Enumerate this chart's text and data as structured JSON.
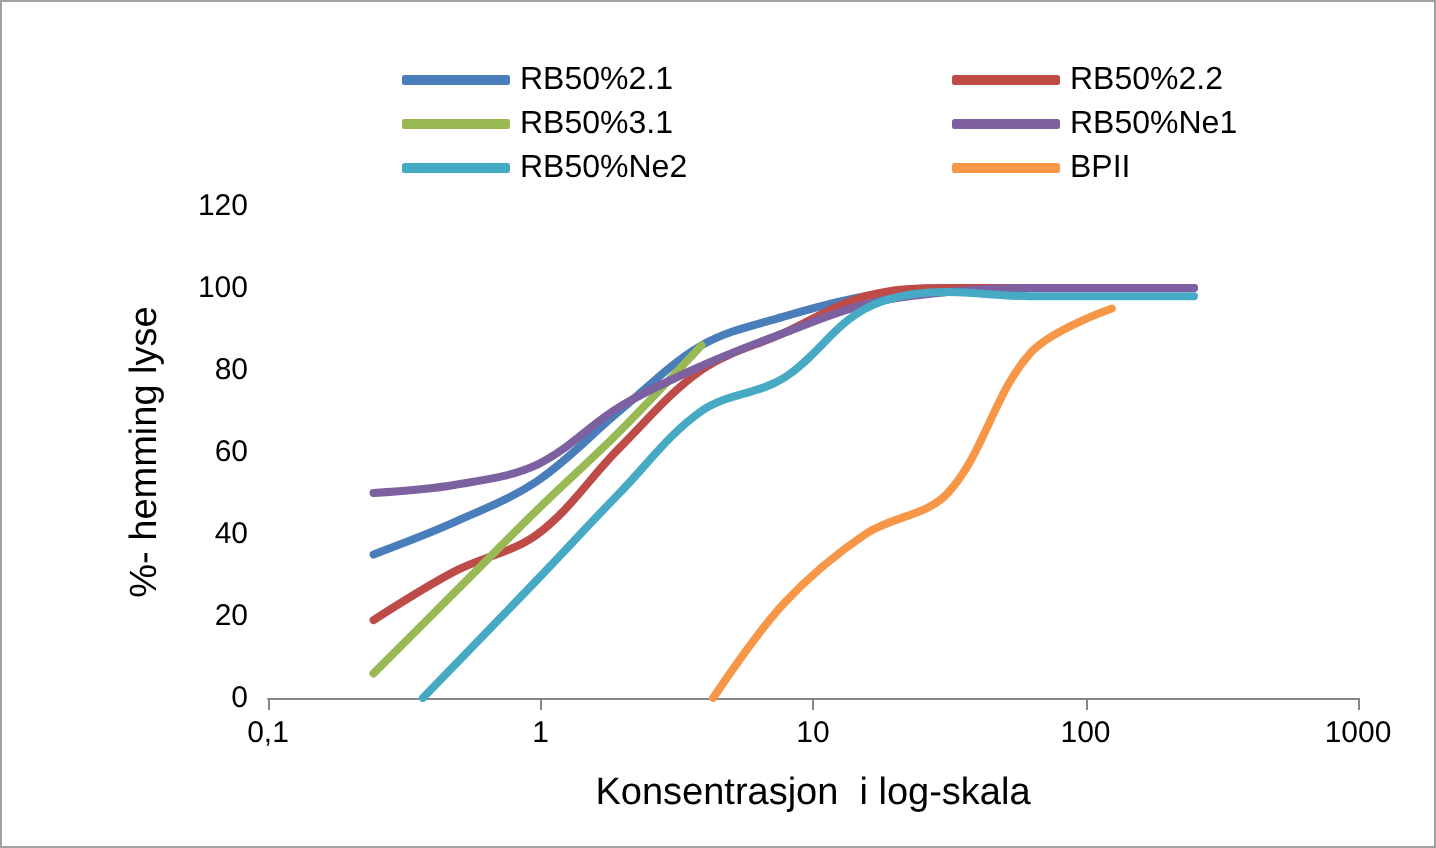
{
  "chart_data": {
    "type": "line",
    "xlabel": "Konsentrasjon  i log-skala",
    "ylabel": "%- hemming lyse",
    "log": "x",
    "xlim": [
      0.1,
      1000
    ],
    "xticks": [
      {
        "value": 0.1,
        "label": "0,1"
      },
      1,
      10,
      100,
      1000
    ],
    "ylim": [
      0,
      120
    ],
    "yticks": [
      0,
      20,
      40,
      60,
      80,
      100,
      120
    ],
    "grid": false,
    "legend": "top",
    "marker": "none",
    "series": [
      {
        "name": "RB50%2.1",
        "color": "#4a7ebb",
        "x": [
          0.244,
          0.488,
          0.977,
          1.95,
          3.9,
          7.8,
          15.6,
          31.25,
          62.5,
          125,
          250
        ],
        "values": [
          35,
          43,
          53,
          70,
          86,
          93,
          98,
          100,
          100,
          100,
          100
        ]
      },
      {
        "name": "RB50%2.2",
        "color": "#be4b48",
        "x": [
          0.244,
          0.488,
          0.977,
          1.95,
          3.9,
          7.8,
          15.6,
          31.25,
          62.5,
          125,
          250
        ],
        "values": [
          19,
          31,
          40,
          61,
          80,
          89,
          98,
          100,
          100,
          100,
          100
        ]
      },
      {
        "name": "RB50%3.1",
        "color": "#98b954",
        "x": [
          0.244,
          0.488,
          0.977,
          1.95,
          3.9
        ],
        "values": [
          6,
          26,
          46,
          65,
          86
        ]
      },
      {
        "name": "RB50%Ne1",
        "color": "#7d60a0",
        "x": [
          0.244,
          0.488,
          0.977,
          1.95,
          3.9,
          7.8,
          15.6,
          31.25,
          62.5,
          125,
          250
        ],
        "values": [
          50,
          52,
          57,
          71,
          81,
          89,
          96,
          99,
          100,
          100,
          100
        ]
      },
      {
        "name": "RB50%Ne2",
        "color": "#46aac5",
        "x": [
          0.37,
          0.977,
          1.95,
          3.9,
          7.8,
          15.6,
          31.25,
          62.5,
          125,
          250
        ],
        "values": [
          0,
          29,
          50,
          70,
          78,
          95,
          99,
          98,
          98,
          98
        ]
      },
      {
        "name": "BPII",
        "color": "#f79646",
        "x": [
          4.3,
          7.8,
          15.6,
          31.25,
          62.5,
          125
        ],
        "values": [
          0,
          23,
          40,
          50,
          84,
          95
        ]
      }
    ]
  }
}
